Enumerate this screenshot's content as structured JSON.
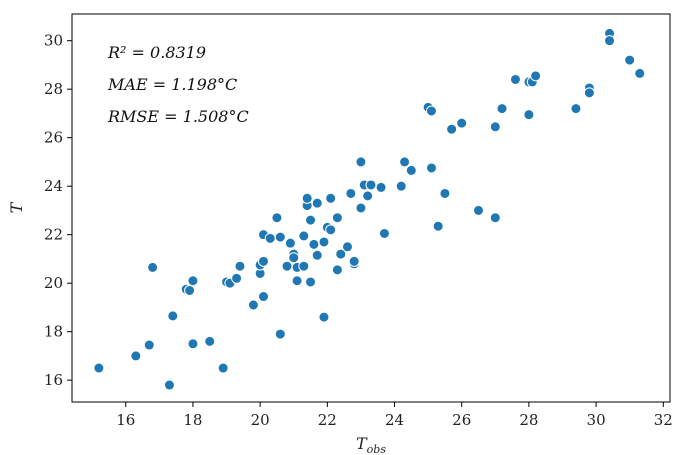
{
  "chart_data": {
    "type": "scatter",
    "title": "",
    "xlabel": "T",
    "xlabel_sub": "obs",
    "ylabel": "T",
    "xlim": [
      14.4,
      32.2
    ],
    "ylim": [
      15.1,
      31.1
    ],
    "xticks": [
      16,
      18,
      20,
      22,
      24,
      26,
      28,
      30,
      32
    ],
    "yticks": [
      16,
      18,
      20,
      22,
      24,
      26,
      28,
      30
    ],
    "grid": false,
    "marker_color": "#1f77b4",
    "annotations": {
      "r2": "R² = 0.8319",
      "mae": "MAE = 1.198°C",
      "rmse": "RMSE = 1.508°C"
    },
    "points": [
      {
        "x": 15.2,
        "y": 16.5
      },
      {
        "x": 16.3,
        "y": 17.0
      },
      {
        "x": 16.7,
        "y": 17.45
      },
      {
        "x": 16.8,
        "y": 20.65
      },
      {
        "x": 17.3,
        "y": 15.8
      },
      {
        "x": 17.4,
        "y": 18.65
      },
      {
        "x": 17.8,
        "y": 19.75
      },
      {
        "x": 17.9,
        "y": 19.7
      },
      {
        "x": 18.0,
        "y": 20.1
      },
      {
        "x": 18.0,
        "y": 17.5
      },
      {
        "x": 18.5,
        "y": 17.6
      },
      {
        "x": 18.9,
        "y": 16.5
      },
      {
        "x": 19.0,
        "y": 20.05
      },
      {
        "x": 19.1,
        "y": 20.0
      },
      {
        "x": 19.3,
        "y": 20.2
      },
      {
        "x": 19.4,
        "y": 20.7
      },
      {
        "x": 19.8,
        "y": 19.1
      },
      {
        "x": 20.0,
        "y": 20.4
      },
      {
        "x": 20.0,
        "y": 20.75
      },
      {
        "x": 20.1,
        "y": 20.9
      },
      {
        "x": 20.1,
        "y": 19.45
      },
      {
        "x": 20.1,
        "y": 22.0
      },
      {
        "x": 20.3,
        "y": 21.85
      },
      {
        "x": 20.5,
        "y": 22.7
      },
      {
        "x": 20.6,
        "y": 21.9
      },
      {
        "x": 20.6,
        "y": 17.9
      },
      {
        "x": 20.8,
        "y": 20.7
      },
      {
        "x": 20.9,
        "y": 21.65
      },
      {
        "x": 21.0,
        "y": 21.2
      },
      {
        "x": 21.0,
        "y": 21.05
      },
      {
        "x": 21.1,
        "y": 20.1
      },
      {
        "x": 21.1,
        "y": 20.65
      },
      {
        "x": 21.3,
        "y": 20.7
      },
      {
        "x": 21.3,
        "y": 21.95
      },
      {
        "x": 21.4,
        "y": 23.2
      },
      {
        "x": 21.4,
        "y": 23.5
      },
      {
        "x": 21.5,
        "y": 22.6
      },
      {
        "x": 21.5,
        "y": 20.05
      },
      {
        "x": 21.6,
        "y": 21.6
      },
      {
        "x": 21.7,
        "y": 21.15
      },
      {
        "x": 21.7,
        "y": 23.3
      },
      {
        "x": 21.9,
        "y": 21.7
      },
      {
        "x": 21.9,
        "y": 18.6
      },
      {
        "x": 22.0,
        "y": 22.3
      },
      {
        "x": 22.1,
        "y": 23.5
      },
      {
        "x": 22.1,
        "y": 22.2
      },
      {
        "x": 22.3,
        "y": 20.55
      },
      {
        "x": 22.3,
        "y": 22.7
      },
      {
        "x": 22.4,
        "y": 21.2
      },
      {
        "x": 22.6,
        "y": 21.5
      },
      {
        "x": 22.7,
        "y": 23.7
      },
      {
        "x": 22.8,
        "y": 20.8
      },
      {
        "x": 22.8,
        "y": 20.9
      },
      {
        "x": 23.0,
        "y": 25.0
      },
      {
        "x": 23.0,
        "y": 23.1
      },
      {
        "x": 23.1,
        "y": 24.05
      },
      {
        "x": 23.2,
        "y": 23.6
      },
      {
        "x": 23.3,
        "y": 24.05
      },
      {
        "x": 23.6,
        "y": 23.95
      },
      {
        "x": 23.7,
        "y": 22.05
      },
      {
        "x": 24.2,
        "y": 24.0
      },
      {
        "x": 24.3,
        "y": 25.0
      },
      {
        "x": 24.5,
        "y": 24.65
      },
      {
        "x": 25.0,
        "y": 27.25
      },
      {
        "x": 25.1,
        "y": 27.1
      },
      {
        "x": 25.1,
        "y": 24.75
      },
      {
        "x": 25.3,
        "y": 22.35
      },
      {
        "x": 25.5,
        "y": 23.7
      },
      {
        "x": 25.7,
        "y": 26.35
      },
      {
        "x": 26.0,
        "y": 26.6
      },
      {
        "x": 26.5,
        "y": 23.0
      },
      {
        "x": 27.0,
        "y": 26.45
      },
      {
        "x": 27.0,
        "y": 22.7
      },
      {
        "x": 27.2,
        "y": 27.2
      },
      {
        "x": 27.6,
        "y": 28.4
      },
      {
        "x": 28.0,
        "y": 28.3
      },
      {
        "x": 28.0,
        "y": 26.95
      },
      {
        "x": 28.1,
        "y": 28.3
      },
      {
        "x": 28.2,
        "y": 28.55
      },
      {
        "x": 29.4,
        "y": 27.2
      },
      {
        "x": 29.8,
        "y": 28.05
      },
      {
        "x": 29.8,
        "y": 27.85
      },
      {
        "x": 30.4,
        "y": 30.3
      },
      {
        "x": 30.4,
        "y": 30.0
      },
      {
        "x": 31.0,
        "y": 29.2
      },
      {
        "x": 31.3,
        "y": 28.65
      }
    ]
  }
}
